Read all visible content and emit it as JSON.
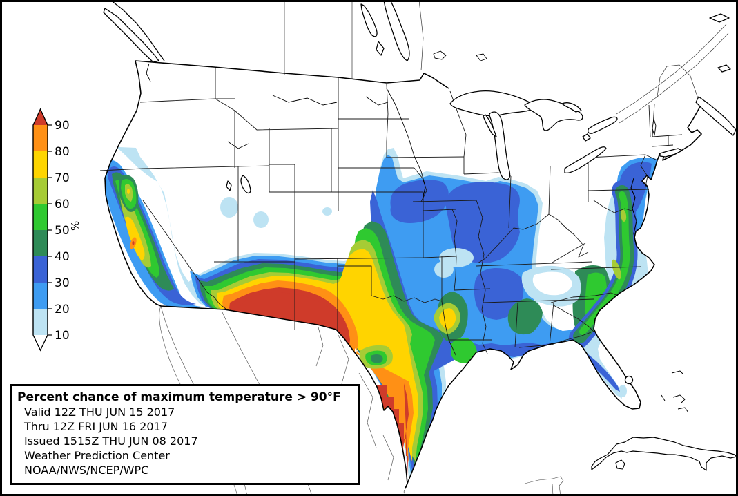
{
  "title_box": {
    "title": "Percent chance of maximum temperature > 90°F",
    "lines": [
      "Valid 12Z THU JUN 15 2017",
      "Thru 12Z FRI JUN 16 2017",
      "Issued 1515Z THU JUN 08 2017",
      "Weather Prediction Center",
      "NOAA/NWS/NCEP/WPC"
    ]
  },
  "legend": {
    "percent_label": "%",
    "arrow_top_color": "#cf3b2a",
    "bottom_label": "10",
    "bands": [
      {
        "label": "90",
        "color": "#ff9015"
      },
      {
        "label": "80",
        "color": "#fed500"
      },
      {
        "label": "70",
        "color": "#a6cc35"
      },
      {
        "label": "60",
        "color": "#2fc930"
      },
      {
        "label": "50",
        "color": "#2e8b57"
      },
      {
        "label": "40",
        "color": "#3a63d6"
      },
      {
        "label": "30",
        "color": "#3e9cf2"
      },
      {
        "label": "20",
        "color": "#bde3f3"
      }
    ]
  },
  "colors": {
    "p10": "#bde3f3",
    "p20": "#3e9cf2",
    "p30": "#3a63d6",
    "p40": "#2e8b57",
    "p50": "#2fc930",
    "p60": "#a6cc35",
    "p70": "#ffd400",
    "p80": "#ff9015",
    "p90": "#cf3b2a",
    "land": "#ffffff",
    "line": "#000000"
  }
}
